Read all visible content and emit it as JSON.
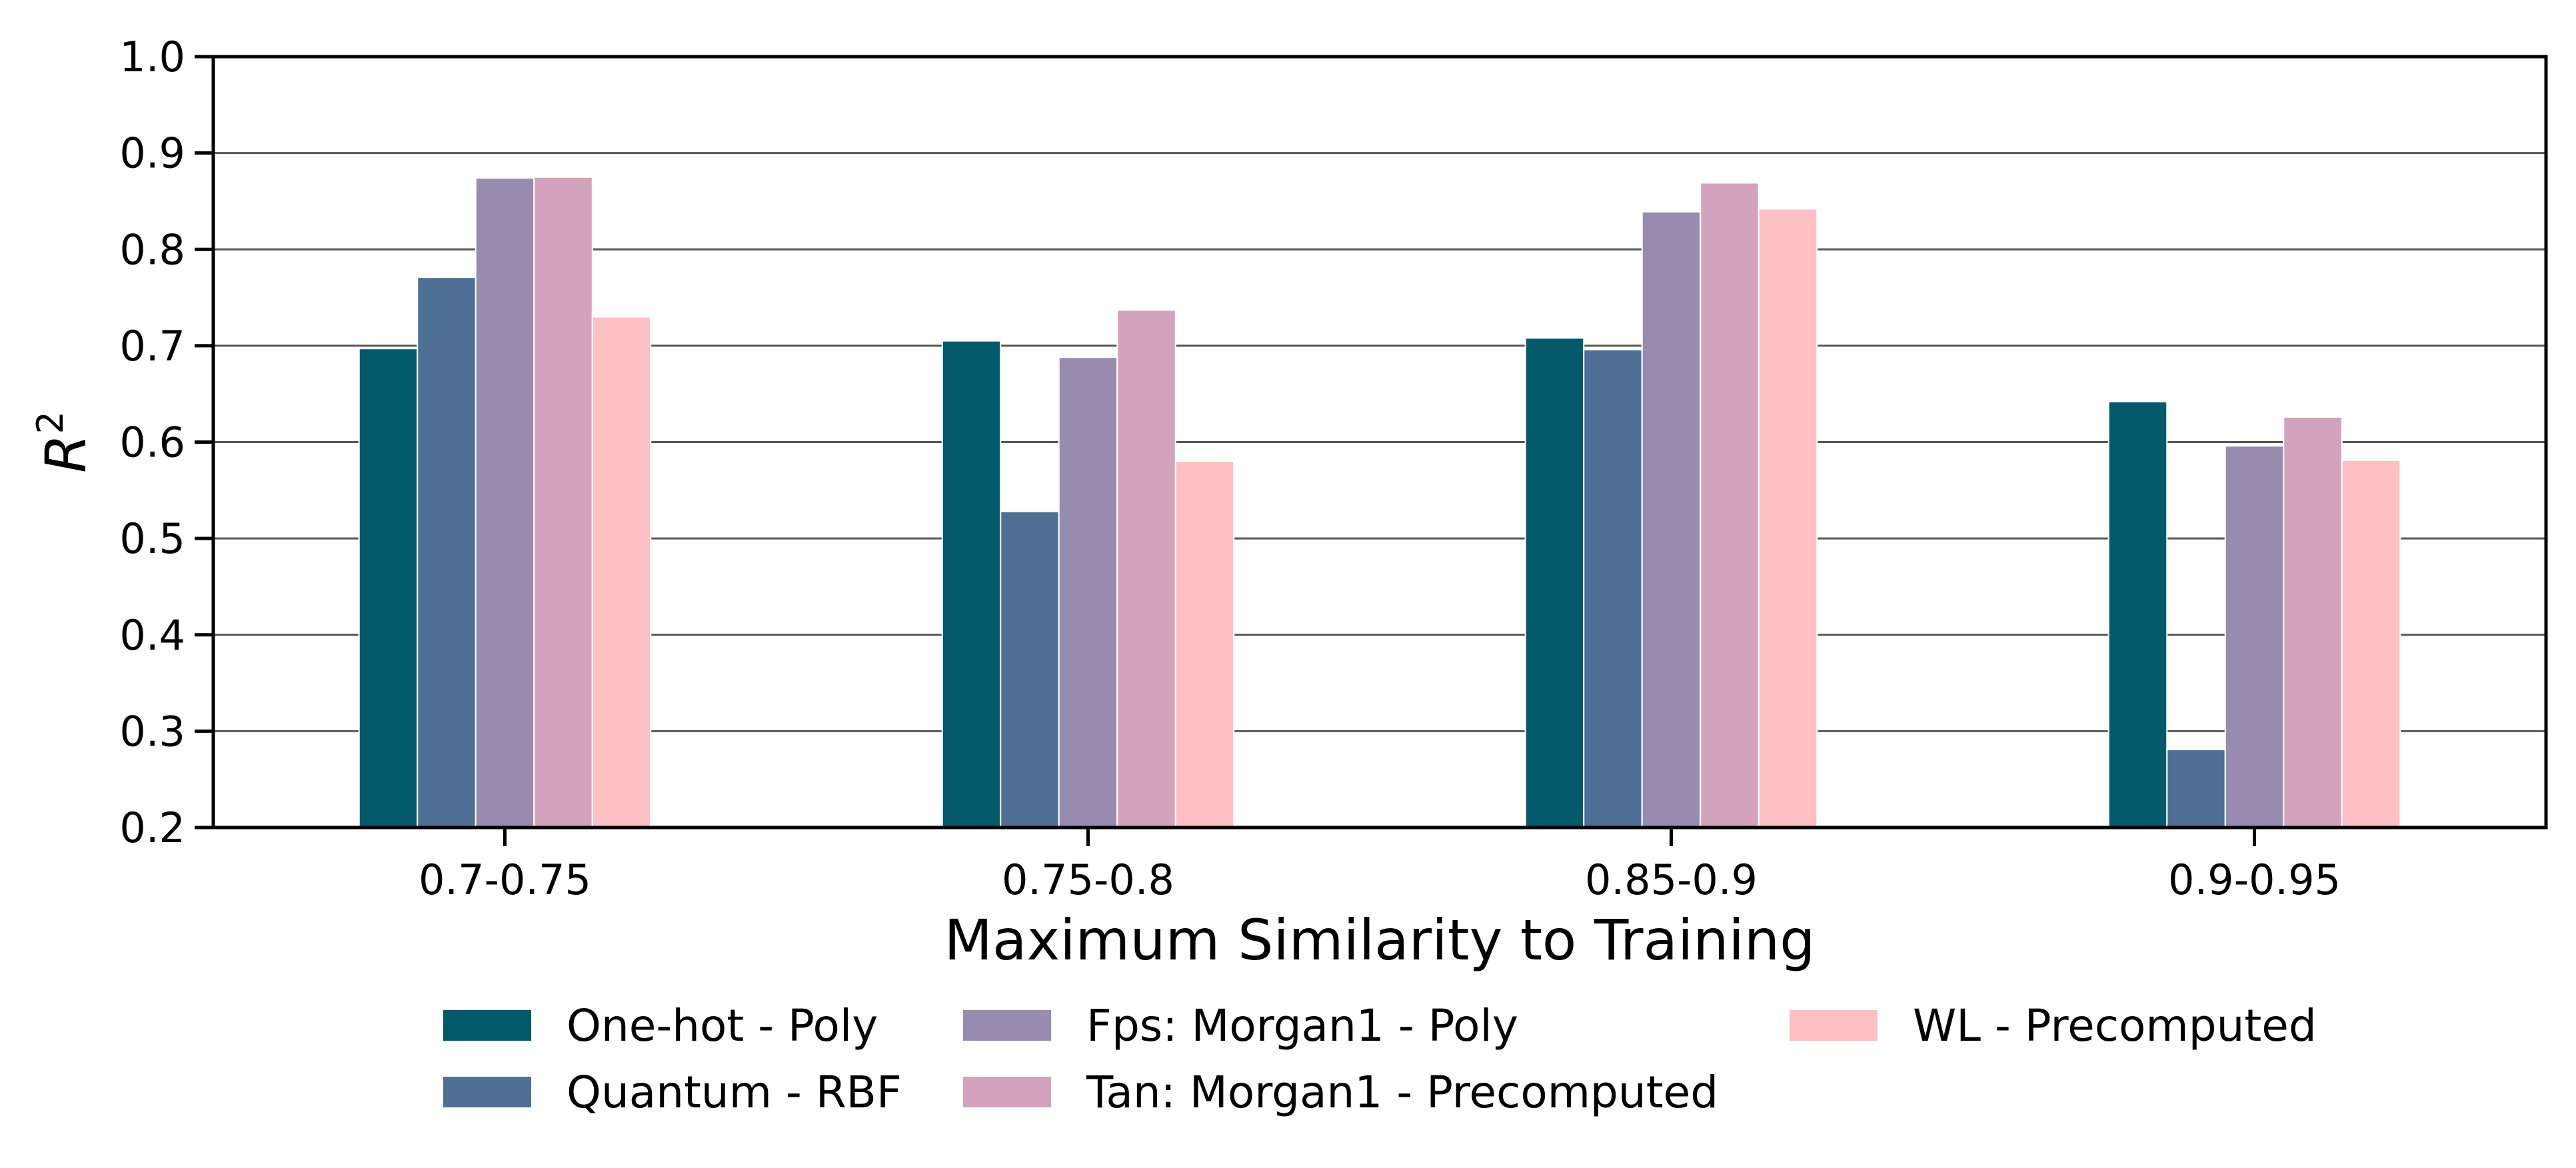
{
  "chart_data": {
    "type": "bar",
    "xlabel": "Maximum Similarity to Training",
    "ylabel": "R",
    "ylabel_superscript": "2",
    "ylim": [
      0.2,
      1.0
    ],
    "yticks": [
      "0.2",
      "0.3",
      "0.4",
      "0.5",
      "0.6",
      "0.7",
      "0.8",
      "0.9",
      "1.0"
    ],
    "grid": "horizontal",
    "legend_placement": "bottom",
    "categories": [
      "0.7-0.75",
      "0.75-0.8",
      "0.85-0.9",
      "0.9-0.95"
    ],
    "series": [
      {
        "name": "One-hot - Poly",
        "color": "#025a6b",
        "values": [
          0.697,
          0.705,
          0.708,
          0.642
        ]
      },
      {
        "name": "Quantum - RBF",
        "color": "#4d7094",
        "values": [
          0.771,
          0.528,
          0.696,
          0.281
        ]
      },
      {
        "name": "Fps: Morgan1 - Poly",
        "color": "#978caf",
        "values": [
          0.874,
          0.688,
          0.839,
          0.596
        ]
      },
      {
        "name": "Tan: Morgan1 - Precomputed",
        "color": "#d3a2bd",
        "values": [
          0.875,
          0.737,
          0.869,
          0.626
        ]
      },
      {
        "name": "WL - Precomputed",
        "color": "#fec0c3",
        "values": [
          0.73,
          0.58,
          0.842,
          0.581
        ]
      }
    ]
  }
}
